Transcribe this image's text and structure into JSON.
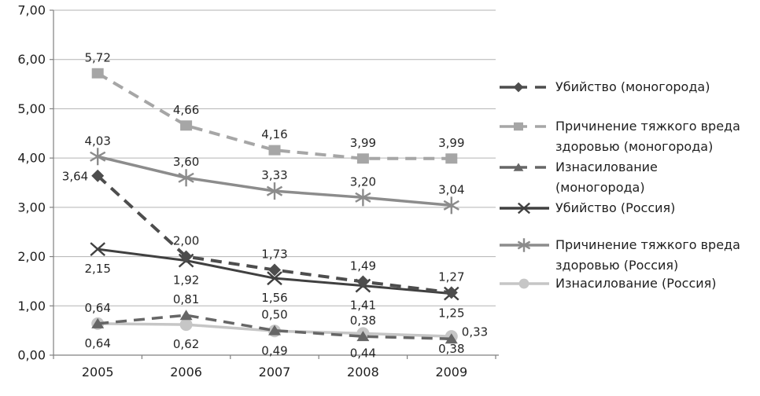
{
  "figure": {
    "kind": "line chart, crime rates per year, monotowns vs Russia",
    "background": "#ffffff"
  },
  "chart_data": {
    "type": "line",
    "title": "",
    "xlabel": "",
    "ylabel": "",
    "categories": [
      "2005",
      "2006",
      "2007",
      "2008",
      "2009"
    ],
    "y_axis": {
      "min": 0,
      "max": 7,
      "step": 1,
      "tick_labels": [
        "0,00",
        "1,00",
        "2,00",
        "3,00",
        "4,00",
        "5,00",
        "6,00",
        "7,00"
      ]
    },
    "grid": "horizontal",
    "decimal_separator": ",",
    "legend_position": "right",
    "series": [
      {
        "key": "murder-mono",
        "name": "Убийство (моногорода)",
        "legend_lines": [
          "Убийство (моногорода)"
        ],
        "values": [
          3.64,
          2.0,
          1.73,
          1.49,
          1.27
        ],
        "point_labels": [
          "3,64",
          "2,00",
          "1,73",
          "1,49",
          "1,27"
        ],
        "color": "#4d4d4d",
        "dashed": true,
        "marker": "diamond",
        "label_side": "above"
      },
      {
        "key": "harm-mono",
        "name": "Причинение тяжкого вреда здоровью (моногорода)",
        "legend_lines": [
          "Причинение тяжкого вреда",
          "здоровью (моногорода)"
        ],
        "values": [
          5.72,
          4.66,
          4.16,
          3.99,
          3.99
        ],
        "point_labels": [
          "5,72",
          "4,66",
          "4,16",
          "3,99",
          "3,99"
        ],
        "color": "#a6a6a6",
        "dashed": true,
        "marker": "square",
        "label_side": "above"
      },
      {
        "key": "rape-mono",
        "name": "Изнасилование (моногорода)",
        "legend_lines": [
          "Изнасилование",
          "(моногорода)"
        ],
        "values": [
          0.64,
          0.81,
          0.5,
          0.38,
          0.33
        ],
        "point_labels": [
          "0,64",
          "0,81",
          "0,50",
          "0,38",
          "0,33"
        ],
        "color": "#666666",
        "dashed": true,
        "marker": "triangle",
        "label_side": "above"
      },
      {
        "key": "murder-rus",
        "name": "Убийство (Россия)",
        "legend_lines": [
          "Убийство (Россия)"
        ],
        "values": [
          2.15,
          1.92,
          1.56,
          1.41,
          1.25
        ],
        "point_labels": [
          "2,15",
          "1,92",
          "1,56",
          "1,41",
          "1,25"
        ],
        "color": "#404040",
        "dashed": false,
        "marker": "xmark",
        "label_side": "below"
      },
      {
        "key": "harm-rus",
        "name": "Причинение тяжкого вреда здоровью (Россия)",
        "legend_lines": [
          "Причинение тяжкого вреда",
          "здоровью (Россия)"
        ],
        "values": [
          4.03,
          3.6,
          3.33,
          3.2,
          3.04
        ],
        "point_labels": [
          "4,03",
          "3,60",
          "3,33",
          "3,20",
          "3,04"
        ],
        "color": "#8c8c8c",
        "dashed": false,
        "marker": "asterisk",
        "label_side": "above"
      },
      {
        "key": "rape-rus",
        "name": "Изнасилование (Россия)",
        "legend_lines": [
          "Изнасилование (Россия)"
        ],
        "values": [
          0.64,
          0.62,
          0.49,
          0.44,
          0.38
        ],
        "point_labels": [
          "0,64",
          "0,62",
          "0,49",
          "0,44",
          "0,38"
        ],
        "color": "#c6c6c6",
        "dashed": false,
        "marker": "circle",
        "label_side": "below"
      }
    ],
    "colors": {
      "gridline": "#b3b3b3",
      "axis": "#808080",
      "axis_text": "#1f1f1f",
      "data_label": "#262626"
    }
  }
}
